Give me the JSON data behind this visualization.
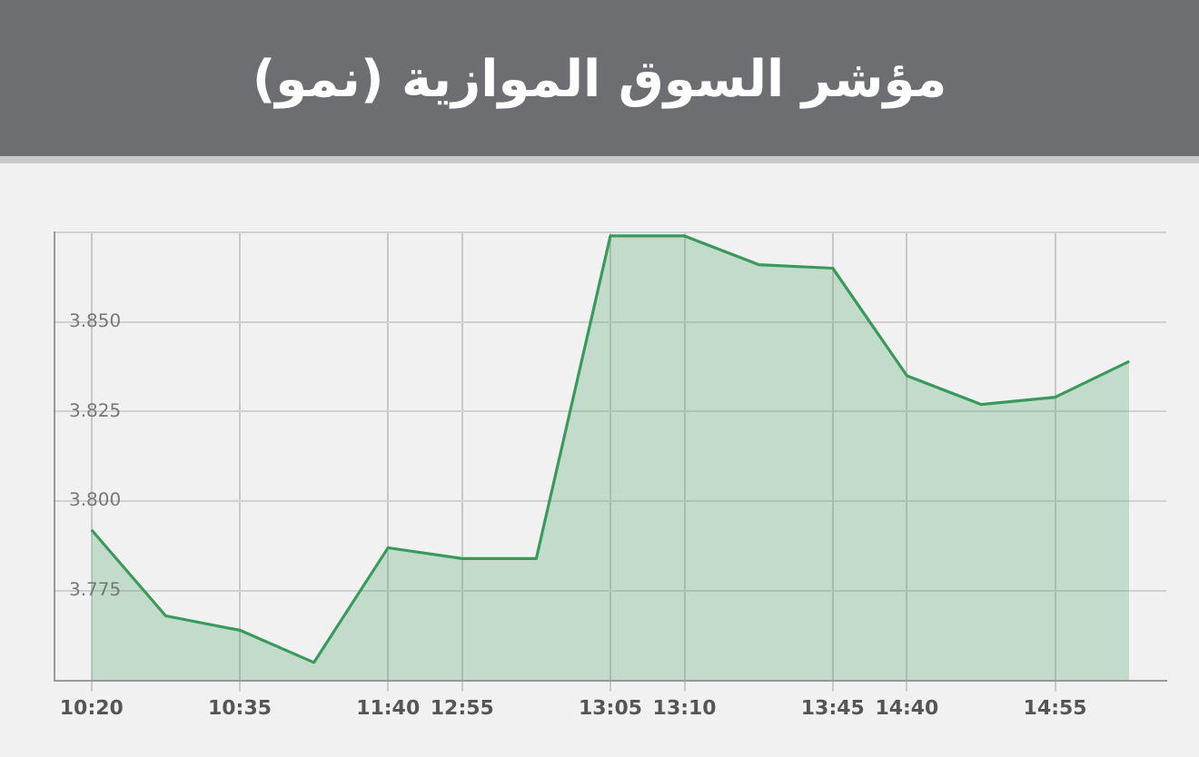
{
  "chart_data": {
    "type": "area",
    "title": "مؤشر السوق الموازية (نمو)",
    "categories": [
      "10:20",
      null,
      "10:35",
      null,
      "11:40",
      "12:55",
      null,
      "13:05",
      "13:10",
      null,
      "13:45",
      "14:40",
      null,
      "14:55",
      null
    ],
    "series": [
      {
        "color": "#3a9a5c",
        "values": [
          3.792,
          3.768,
          3.764,
          3.755,
          3.787,
          3.784,
          3.784,
          3.874,
          3.874,
          3.866,
          3.865,
          3.835,
          3.827,
          3.829,
          3.839
        ]
      }
    ],
    "ylim": [
      3.75,
      3.875
    ],
    "yticks": [
      {
        "value": 3.75,
        "label": null
      },
      {
        "value": 3.775,
        "label": "3.775"
      },
      {
        "value": 3.8,
        "label": "3.800"
      },
      {
        "value": 3.825,
        "label": "3.825"
      },
      {
        "value": 3.85,
        "label": "3.850"
      },
      {
        "value": 3.875,
        "label": null
      }
    ],
    "grid": true,
    "legend": false,
    "marker": "none"
  }
}
